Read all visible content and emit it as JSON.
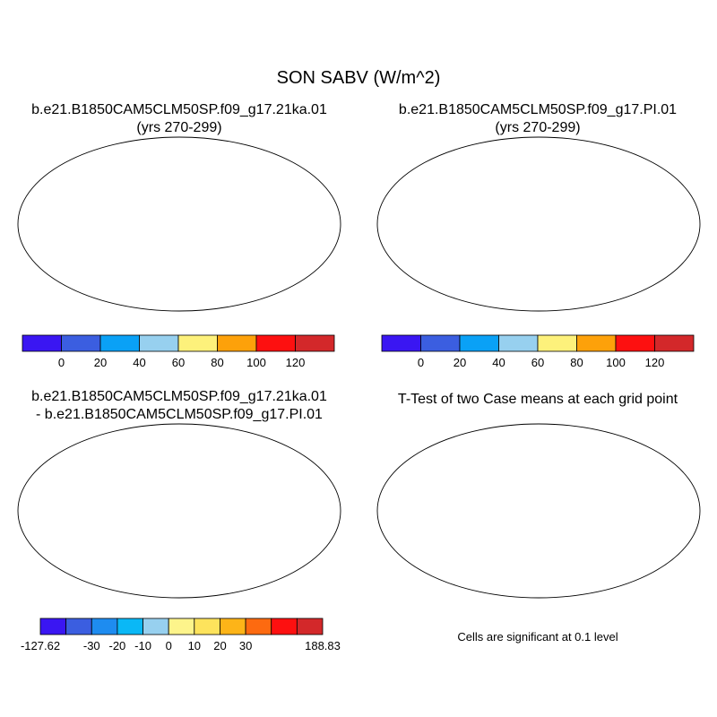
{
  "figure": {
    "title": "SON SABV (W/m^2)",
    "sig_note": "Cells are significant at 0.1 level"
  },
  "panels": {
    "case_a": {
      "title_line1": "b.e21.B1850CAM5CLM50SP.f09_g17.21ka.01",
      "title_line2": "(yrs 270-299)"
    },
    "case_b": {
      "title_line1": "b.e21.B1850CAM5CLM50SP.f09_g17.PI.01",
      "title_line2": "(yrs 270-299)"
    },
    "diff": {
      "title_line1": "b.e21.B1850CAM5CLM50SP.f09_g17.21ka.01",
      "title_line2": "- b.e21.B1850CAM5CLM50SP.f09_g17.PI.01"
    },
    "ttest": {
      "title": "T-Test of two Case means at each grid point"
    }
  },
  "colorbars": {
    "abs": {
      "colors": [
        "#3a16f2",
        "#3b5ee0",
        "#0aa1f6",
        "#97d0ef",
        "#fdf17b",
        "#fda10a",
        "#fd1010",
        "#d3282a"
      ],
      "labels": [
        "0",
        "20",
        "40",
        "60",
        "80",
        "100",
        "120"
      ]
    },
    "diff": {
      "colors": [
        "#3a16f2",
        "#3b5ee0",
        "#1e8cf0",
        "#0ab8f6",
        "#97d0ef",
        "#fdf48b",
        "#fde35c",
        "#fdb418",
        "#fd6a10",
        "#fd1010",
        "#d3282a"
      ],
      "labels": [
        "-127.62",
        "-30",
        "-20",
        "-10",
        "0",
        "10",
        "20",
        "30",
        "188.83"
      ]
    }
  },
  "map_colors": {
    "ocean": "#ffffff",
    "antarctica_abs": "#3b5ee0",
    "antarctica_diff": "#fdf48b",
    "significant": "#fd1010"
  }
}
